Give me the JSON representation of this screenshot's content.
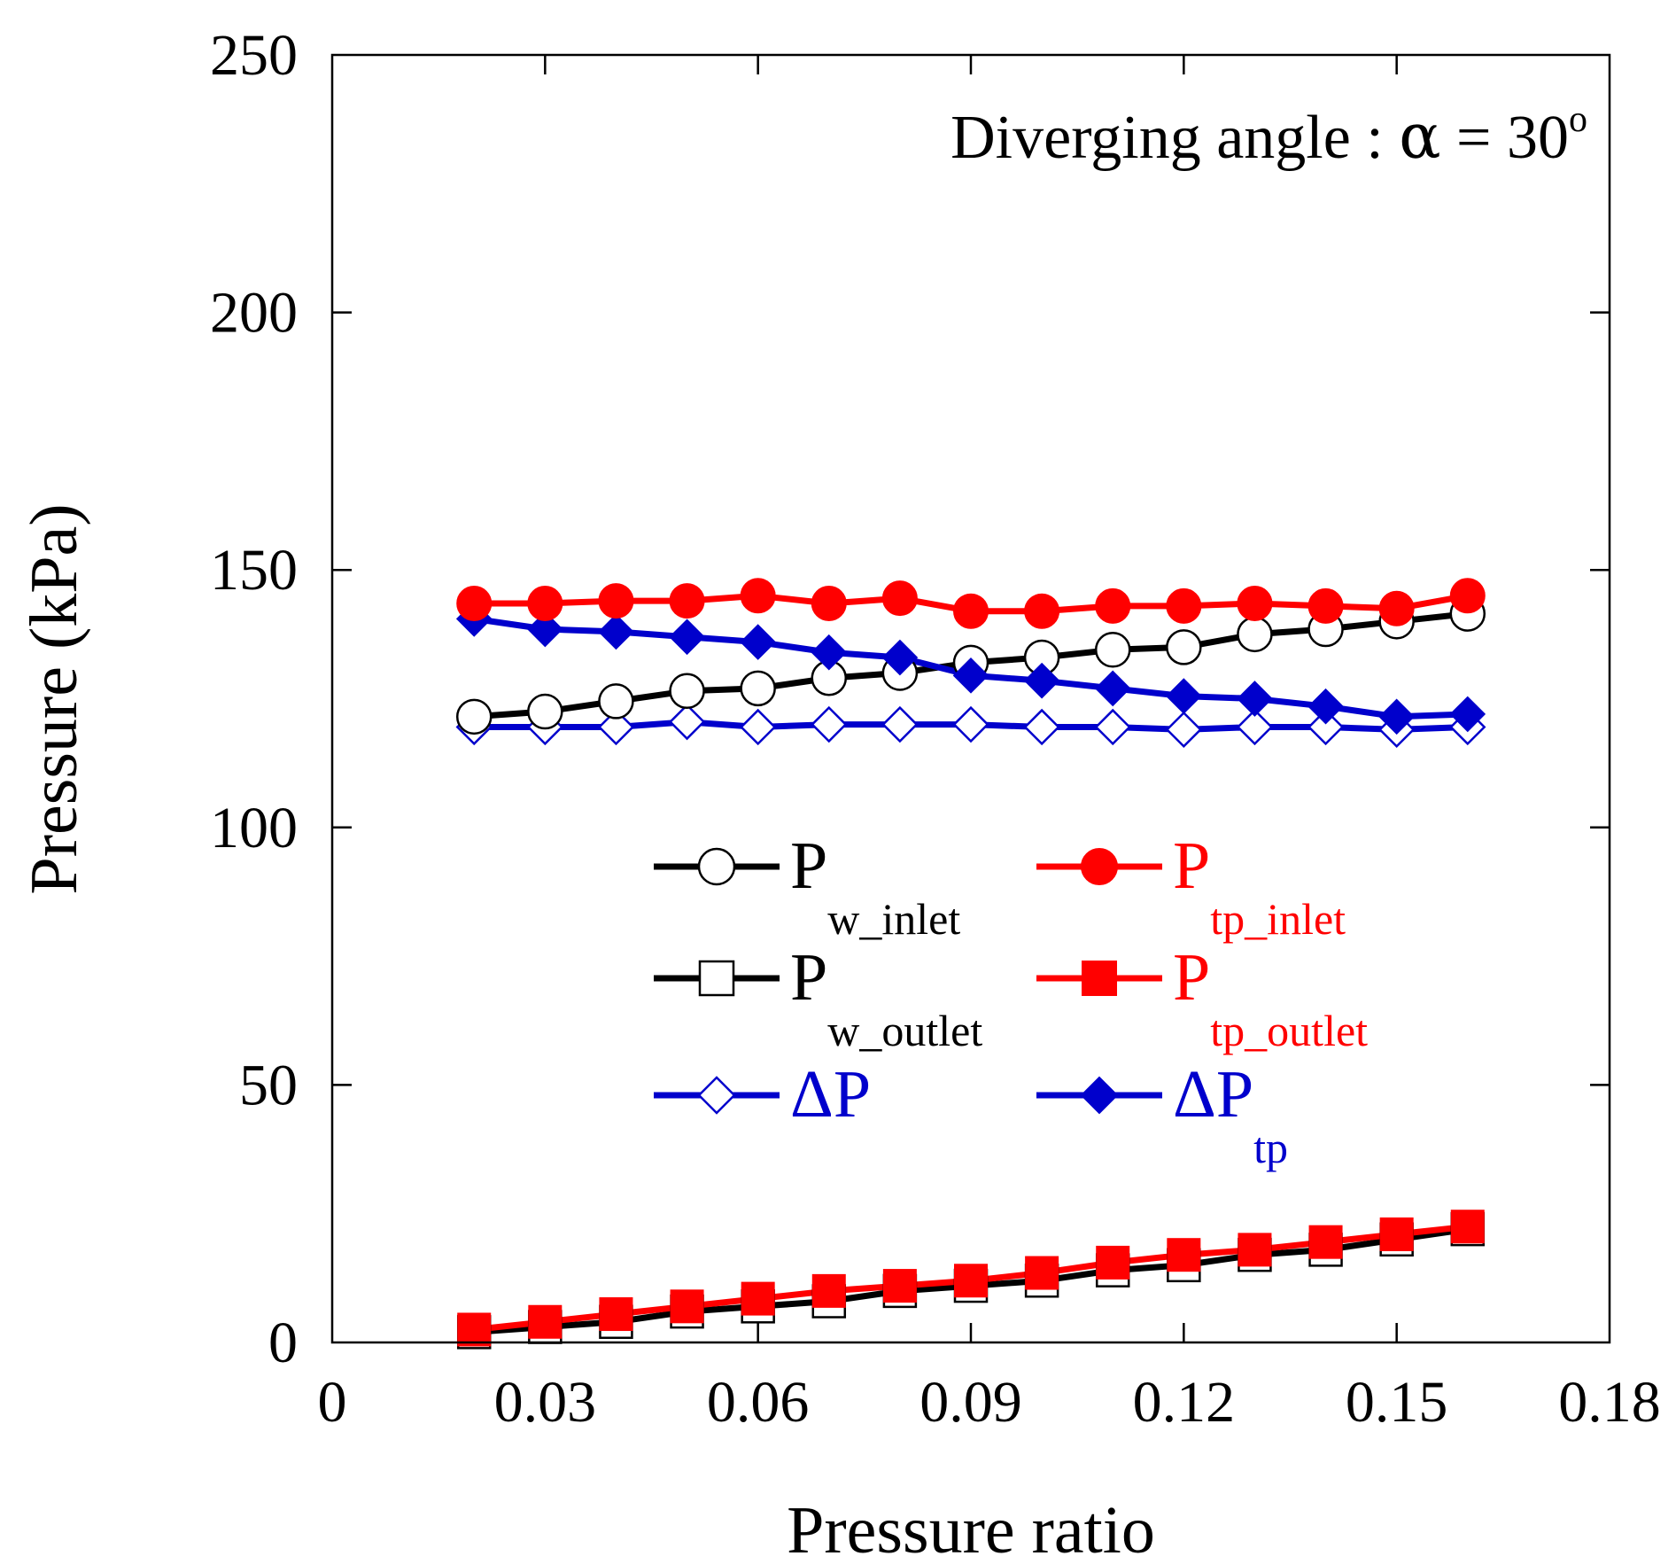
{
  "chart_data": {
    "type": "line",
    "annotation": {
      "prefix": "Diverging angle : ",
      "alpha": "α",
      "rest": " = 30",
      "sup": "o"
    },
    "xlabel": "Pressure ratio",
    "ylabel": "Pressure (kPa)",
    "xlim": [
      0,
      0.18
    ],
    "ylim": [
      0,
      250
    ],
    "xticks": [
      0,
      0.03,
      0.06,
      0.09,
      0.12,
      0.15,
      0.18
    ],
    "xtick_labels": [
      "0",
      "0.03",
      "0.06",
      "0.09",
      "0.12",
      "0.15",
      "0.18"
    ],
    "yticks": [
      0,
      50,
      100,
      150,
      200,
      250
    ],
    "ytick_labels": [
      "0",
      "50",
      "100",
      "150",
      "200",
      "250"
    ],
    "x": [
      0.02,
      0.03,
      0.04,
      0.05,
      0.06,
      0.07,
      0.08,
      0.09,
      0.1,
      0.11,
      0.12,
      0.13,
      0.14,
      0.15,
      0.16
    ],
    "series": [
      {
        "key": "pw_out",
        "main": "P",
        "sub": "w_outlet",
        "color": "#000000",
        "marker": "square-open",
        "values": [
          2,
          3,
          4,
          6,
          7,
          8,
          10,
          11,
          12,
          14,
          15,
          17,
          18,
          20,
          22
        ]
      },
      {
        "key": "ptp_out",
        "main": "P",
        "sub": "tp_outlet",
        "color": "#ff0000",
        "marker": "square-filled",
        "values": [
          2.5,
          4,
          5.5,
          7,
          8.5,
          10,
          11,
          12,
          13.5,
          15.5,
          17,
          18,
          19.5,
          21,
          22.5
        ]
      },
      {
        "key": "dp",
        "main": "ΔP",
        "sub": "",
        "color": "#0000cc",
        "marker": "diamond-open",
        "values": [
          119.5,
          119.5,
          119.5,
          120.5,
          119.5,
          120,
          120,
          120,
          119.5,
          119.5,
          119,
          119.5,
          119.5,
          119,
          119.5
        ]
      },
      {
        "key": "pw_in",
        "main": "P",
        "sub": "w_inlet",
        "color": "#000000",
        "marker": "circle-open",
        "values": [
          121.5,
          122.5,
          124.5,
          126.5,
          127,
          129,
          130,
          132,
          133,
          134.5,
          135,
          137.5,
          138.5,
          140,
          141.5
        ]
      },
      {
        "key": "dptp",
        "main": "ΔP",
        "sub": "tp",
        "color": "#0000cc",
        "marker": "diamond-filled",
        "values": [
          140.5,
          138.5,
          138,
          137,
          136,
          134,
          133,
          129.5,
          128.5,
          127,
          125.5,
          125,
          123.5,
          121.5,
          122
        ]
      },
      {
        "key": "ptp_in",
        "main": "P",
        "sub": "tp_inlet",
        "color": "#ff0000",
        "marker": "circle-filled",
        "values": [
          143.5,
          143.5,
          144,
          144,
          145,
          143.5,
          144.5,
          142,
          142,
          143,
          143,
          143.5,
          143,
          142.5,
          145
        ]
      }
    ],
    "legend_order": [
      "pw_in",
      "ptp_in",
      "pw_out",
      "ptp_out",
      "dp",
      "dptp"
    ],
    "legend_position": "center"
  }
}
